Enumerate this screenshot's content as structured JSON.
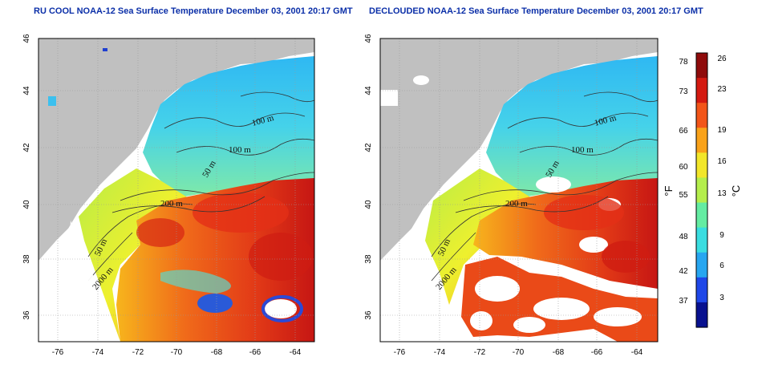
{
  "panels": [
    {
      "title": "RU COOL NOAA-12 Sea Surface Temperature December 03, 2001 20:17 GMT",
      "x_ticks": [
        "-76",
        "-74",
        "-72",
        "-70",
        "-68",
        "-66",
        "-64"
      ],
      "y_ticks": [
        "36",
        "38",
        "40",
        "42",
        "44",
        "46"
      ],
      "contour_labels": [
        "100 m",
        "100 m",
        "50 m",
        "200 m",
        "50 m",
        "2000 m"
      ]
    },
    {
      "title": "DECLOUDED NOAA-12 Sea Surface Temperature December 03, 2001 20:17 GMT",
      "x_ticks": [
        "-76",
        "-74",
        "-72",
        "-70",
        "-68",
        "-66",
        "-64"
      ],
      "y_ticks": [
        "36",
        "38",
        "40",
        "42",
        "44",
        "46"
      ],
      "contour_labels": [
        "100 m",
        "100 m",
        "50 m",
        "200 m",
        "50 m",
        "2000 m"
      ]
    }
  ],
  "colorbar": {
    "fahrenheit_label": "°F",
    "celsius_label": "°C",
    "fahrenheit_ticks": [
      "78",
      "73",
      "66",
      "60",
      "55",
      "48",
      "42",
      "37"
    ],
    "celsius_ticks": [
      "26",
      "23",
      "19",
      "16",
      "13",
      "9",
      "6",
      "3"
    ],
    "colors": [
      "#08118f",
      "#1f47e8",
      "#27a6f0",
      "#39dde0",
      "#64eca2",
      "#b4ee4c",
      "#f2e62a",
      "#f9a21a",
      "#f25519",
      "#d41a11",
      "#8f0b0b"
    ]
  },
  "colors": {
    "land": "#c0c0c0",
    "title": "#0b2fa8",
    "contour": "#333333",
    "grid": "#9a9a9a"
  }
}
